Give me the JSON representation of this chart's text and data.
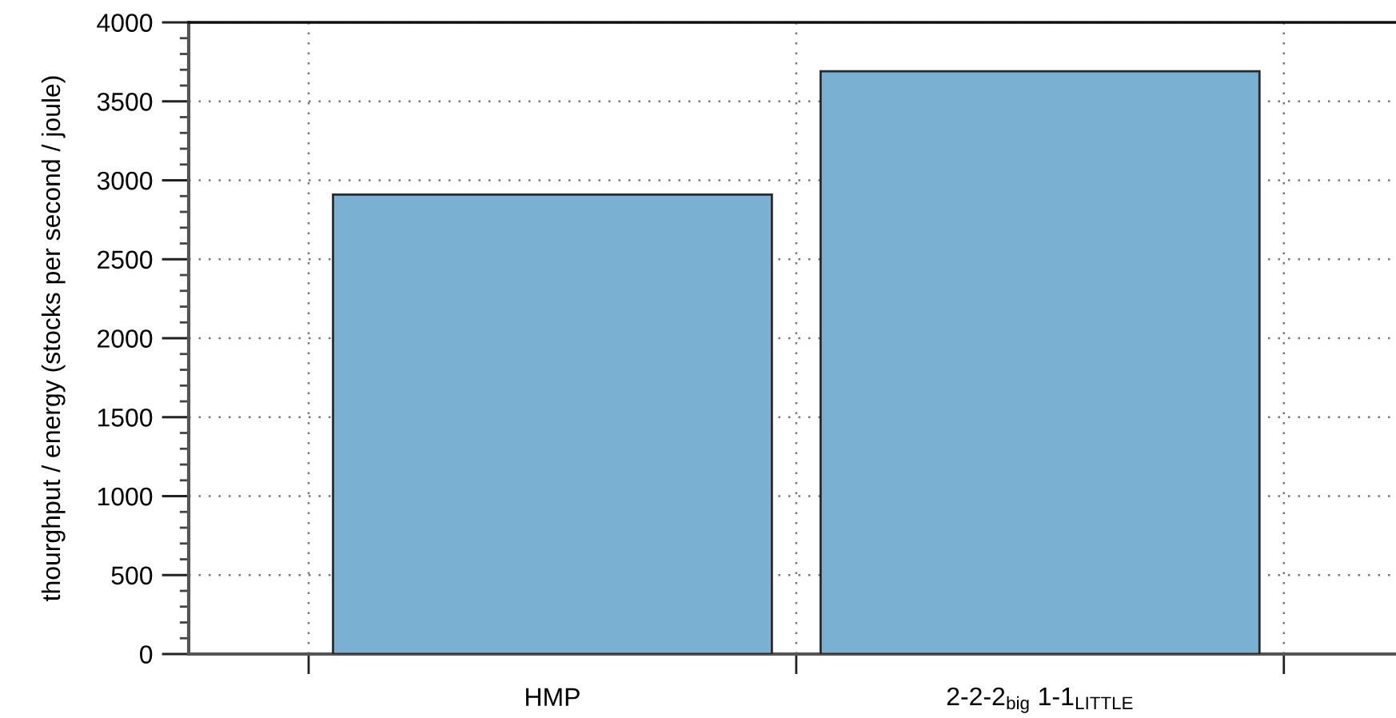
{
  "chart_data": {
    "type": "bar",
    "ylabel": "thourghput / energy (stocks per second / joule)",
    "categories": [
      "HMP",
      "2-2-2$_{big}$ 1-1$_{LITTLE}$"
    ],
    "values": [
      2910,
      3690
    ],
    "color": "#7ab1d3",
    "ylim": [
      0,
      4000
    ],
    "yticks": [
      0,
      {
        "value": 100,
        "label": null
      },
      {
        "value": 200,
        "label": null
      },
      {
        "value": 300,
        "label": null
      },
      {
        "value": 400,
        "label": null
      },
      500,
      {
        "value": 600,
        "label": null
      },
      {
        "value": 700,
        "label": null
      },
      {
        "value": 800,
        "label": null
      },
      {
        "value": 900,
        "label": null
      },
      1000,
      {
        "value": 1100,
        "label": null
      },
      {
        "value": 1200,
        "label": null
      },
      {
        "value": 1300,
        "label": null
      },
      {
        "value": 1400,
        "label": null
      },
      1500,
      {
        "value": 1600,
        "label": null
      },
      {
        "value": 1700,
        "label": null
      },
      {
        "value": 1800,
        "label": null
      },
      {
        "value": 1900,
        "label": null
      },
      2000,
      {
        "value": 2100,
        "label": null
      },
      {
        "value": 2200,
        "label": null
      },
      {
        "value": 2300,
        "label": null
      },
      {
        "value": 2400,
        "label": null
      },
      2500,
      {
        "value": 2600,
        "label": null
      },
      {
        "value": 2700,
        "label": null
      },
      {
        "value": 2800,
        "label": null
      },
      {
        "value": 2900,
        "label": null
      },
      3000,
      {
        "value": 3100,
        "label": null
      },
      {
        "value": 3200,
        "label": null
      },
      {
        "value": 3300,
        "label": null
      },
      {
        "value": 3400,
        "label": null
      },
      3500,
      {
        "value": 3600,
        "label": null
      },
      {
        "value": 3700,
        "label": null
      },
      {
        "value": 3800,
        "label": null
      },
      {
        "value": 3900,
        "label": null
      },
      4000
    ],
    "grid": true
  }
}
